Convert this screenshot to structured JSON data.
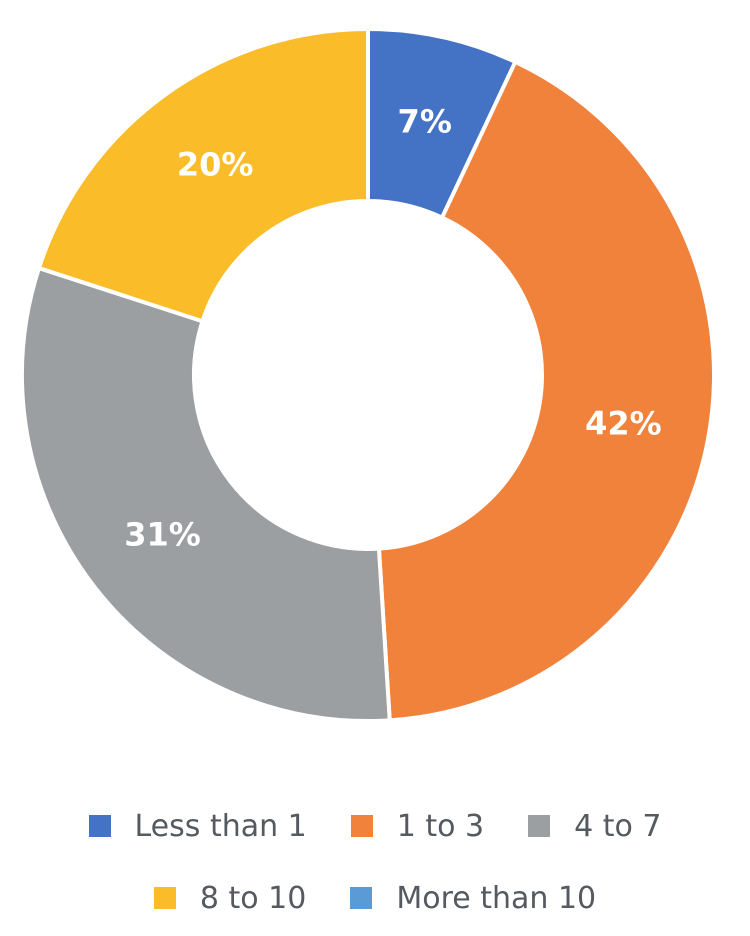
{
  "chart_data": {
    "type": "pie",
    "donut": true,
    "categories": [
      "Less than 1",
      "1 to 3",
      "4 to 7",
      "8 to 10",
      "More than 10"
    ],
    "values": [
      7,
      42,
      31,
      20,
      0
    ],
    "data_labels": [
      "7%",
      "42%",
      "31%",
      "20%",
      ""
    ],
    "colors": [
      "#4472c4",
      "#f0823c",
      "#9c9fa2",
      "#fbbc2a",
      "#5b9bd5"
    ],
    "legend_position": "bottom",
    "legend_rows": [
      [
        "Less than 1",
        "1 to 3",
        "4 to 7"
      ],
      [
        "8 to 10",
        "More than 10"
      ]
    ]
  }
}
